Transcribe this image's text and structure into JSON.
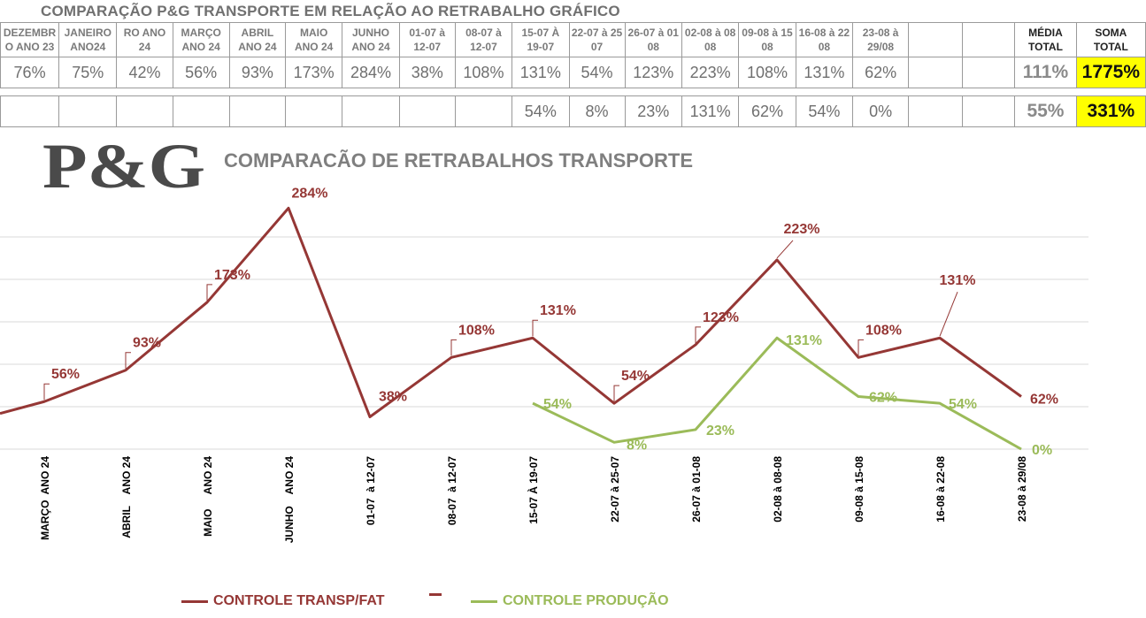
{
  "table": {
    "title": "COMPARAÇÃO P&G  TRANSPORTE EM RELAÇÃO AO RETRABALHO GRÁFICO",
    "headers": [
      [
        "DEZEMBR",
        "O ANO 23"
      ],
      [
        "JANEIRO",
        "ANO24"
      ],
      [
        "RO ANO",
        "24"
      ],
      [
        "MARÇO",
        "ANO 24"
      ],
      [
        "ABRIL",
        "ANO 24"
      ],
      [
        "MAIO",
        "ANO 24"
      ],
      [
        "JUNHO",
        "ANO 24"
      ],
      [
        "01-07  à",
        "12-07"
      ],
      [
        "08-07  à",
        "12-07"
      ],
      [
        "15-07 À",
        "19-07"
      ],
      [
        "22-07 à 25",
        "07"
      ],
      [
        "26-07 à 01",
        "08"
      ],
      [
        "02-08 à 08",
        "08"
      ],
      [
        "09-08 à 15",
        "08"
      ],
      [
        "16-08 à 22",
        "08"
      ],
      [
        "23-08 à",
        "29/08"
      ],
      [
        "",
        ""
      ],
      [
        "",
        ""
      ],
      [
        "MÉDIA",
        "TOTAL"
      ],
      [
        "SOMA",
        "TOTAL"
      ]
    ],
    "row1": [
      "76%",
      "75%",
      "42%",
      "56%",
      "93%",
      "173%",
      "284%",
      "38%",
      "108%",
      "131%",
      "54%",
      "123%",
      "223%",
      "108%",
      "131%",
      "62%",
      "",
      "",
      "111%",
      "1775%"
    ],
    "row2": [
      "",
      "",
      "",
      "",
      "",
      "",
      "",
      "",
      "",
      "54%",
      "8%",
      "23%",
      "131%",
      "62%",
      "54%",
      "0%",
      "",
      "",
      "55%",
      "331%"
    ]
  },
  "logo": {
    "text": "P&G"
  },
  "chart_data": {
    "type": "line",
    "title": "COMPARACÃO DE RETRABALHOS TRANSPORTE",
    "categories": [
      "MARÇO  ANO 24",
      "ABRIL    ANO 24",
      "MAIO     ANO 24",
      "JUNHO    ANO 24",
      "01-07  à 12-07",
      "08-07  à 12-07",
      "15-07 À 19-07",
      "22-07 à 25-07",
      "26-07 à 01-08",
      "02-08 à 08-08",
      "09-08 à 15-08",
      "16-08 à 22-08",
      "23-08 à 29/08"
    ],
    "ylim": [
      0,
      300
    ],
    "grid": true,
    "legend_position": "bottom",
    "series": [
      {
        "name": "CONTROLE TRANSP/FAT",
        "color": "#953735",
        "leading_value": 42,
        "values": [
          56,
          93,
          173,
          284,
          38,
          108,
          131,
          54,
          123,
          223,
          108,
          131,
          62
        ],
        "labels": [
          "56%",
          "93%",
          "173%",
          "284%",
          "38%",
          "108%",
          "131%",
          "54%",
          "123%",
          "223%",
          "108%",
          "131%",
          "62%"
        ]
      },
      {
        "name": "CONTROLE PRODUÇÃO",
        "color": "#9bbb59",
        "values": [
          null,
          null,
          null,
          null,
          null,
          null,
          54,
          8,
          23,
          131,
          62,
          54,
          0
        ],
        "labels": [
          "",
          "",
          "",
          "",
          "",
          "",
          "54%",
          "8%",
          "23%",
          "131%",
          "62%",
          "54%",
          "0%"
        ]
      }
    ]
  },
  "legend": {
    "item1": "CONTROLE TRANSP/FAT",
    "item2": "CONTROLE PRODUÇÃO"
  },
  "colors": {
    "highlight": "#ffff00",
    "transp": "#953735",
    "producao": "#9bbb59"
  }
}
